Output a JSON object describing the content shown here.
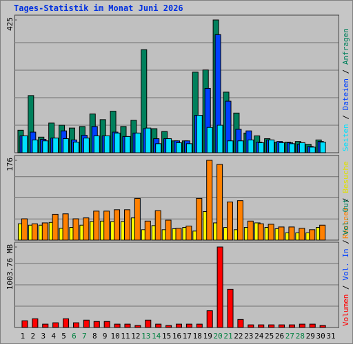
{
  "chart_data": [
    {
      "type": "bar",
      "title": "Tages-Statistik im Monat Juni 2026",
      "legend_separator": " / ",
      "categories": [
        "1",
        "2",
        "3",
        "4",
        "5",
        "6",
        "7",
        "8",
        "9",
        "10",
        "11",
        "12",
        "13",
        "14",
        "15",
        "16",
        "17",
        "18",
        "19",
        "20",
        "21",
        "22",
        "23",
        "24",
        "25",
        "26",
        "27",
        "28",
        "29",
        "30",
        "31"
      ],
      "category_colors": [
        "#000000",
        "#000000",
        "#000000",
        "#000000",
        "#000000",
        "#008040",
        "#008040",
        "#000000",
        "#000000",
        "#000000",
        "#000000",
        "#000000",
        "#008040",
        "#008040",
        "#000000",
        "#000000",
        "#000000",
        "#000000",
        "#000000",
        "#008040",
        "#008040",
        "#000000",
        "#000000",
        "#000000",
        "#000000",
        "#000000",
        "#008040",
        "#008040",
        "#000000",
        "#000000",
        "#000000"
      ],
      "series": [
        {
          "name": "Seiten",
          "color": "#00e0ff",
          "values": [
            54,
            41,
            38,
            47,
            45,
            34,
            47,
            54,
            54,
            63,
            52,
            63,
            79,
            29,
            45,
            32,
            29,
            120,
            81,
            88,
            38,
            38,
            41,
            32,
            41,
            32,
            29,
            32,
            18,
            34,
            null
          ]
        },
        {
          "name": "Dateien",
          "color": "#0040ff",
          "values": [
            54,
            66,
            43,
            47,
            70,
            41,
            56,
            84,
            54,
            66,
            52,
            63,
            77,
            45,
            45,
            38,
            38,
            120,
            206,
            378,
            165,
            75,
            70,
            34,
            41,
            36,
            32,
            27,
            20,
            36,
            null
          ]
        },
        {
          "name": "Anfragen",
          "color": "#00805c",
          "values": [
            72,
            183,
            50,
            95,
            88,
            79,
            84,
            124,
            106,
            133,
            84,
            104,
            330,
            77,
            68,
            38,
            38,
            258,
            265,
            425,
            194,
            127,
            63,
            54,
            45,
            34,
            34,
            36,
            27,
            41,
            null
          ]
        }
      ],
      "ylim": [
        0,
        425
      ],
      "yticks": [
        425
      ],
      "grid": true
    },
    {
      "type": "bar",
      "series": [
        {
          "name": "Rechner",
          "color": "#ff8000",
          "values": [
            47,
            36,
            38,
            57,
            58,
            47,
            49,
            64,
            64,
            67,
            67,
            92,
            42,
            65,
            44,
            26,
            31,
            92,
            176,
            167,
            84,
            87,
            42,
            36,
            35,
            29,
            29,
            26,
            23,
            33,
            null
          ]
        },
        {
          "name": "Besuche",
          "color": "#ffff00",
          "values": [
            36,
            33,
            33,
            39,
            26,
            28,
            33,
            41,
            42,
            41,
            41,
            49,
            23,
            32,
            23,
            25,
            28,
            20,
            63,
            38,
            28,
            23,
            28,
            38,
            28,
            25,
            16,
            16,
            16,
            28,
            null
          ]
        }
      ],
      "ylim": [
        0,
        176
      ],
      "yticks": [
        176
      ],
      "grid": true
    },
    {
      "type": "bar",
      "series": [
        {
          "name": "Volumen",
          "color": "#ff0000",
          "values": [
            84,
            109,
            42,
            59,
            109,
            59,
            92,
            75,
            75,
            42,
            42,
            25,
            92,
            42,
            25,
            42,
            42,
            42,
            209,
            1003.76,
            477,
            100,
            33,
            33,
            33,
            33,
            33,
            42,
            42,
            25,
            null
          ]
        },
        {
          "name": "Vol. In",
          "color": "#0040ff",
          "values": [
            0,
            0,
            0,
            0,
            0,
            0,
            0,
            0,
            0,
            0,
            0,
            0,
            0,
            0,
            0,
            0,
            0,
            0,
            0,
            0,
            0,
            0,
            0,
            0,
            0,
            0,
            0,
            0,
            0,
            0,
            null
          ]
        },
        {
          "name": "Vol. Out",
          "color": "#00805c",
          "values": [
            0,
            0,
            0,
            0,
            0,
            0,
            0,
            0,
            0,
            0,
            0,
            0,
            0,
            0,
            0,
            0,
            0,
            0,
            0,
            0,
            0,
            0,
            0,
            0,
            0,
            0,
            0,
            0,
            0,
            0,
            null
          ]
        }
      ],
      "ylim": [
        0,
        1003.76
      ],
      "yticks": [
        {
          "value": 1003.76,
          "label": "1003.76 MB"
        }
      ],
      "grid": true
    }
  ]
}
